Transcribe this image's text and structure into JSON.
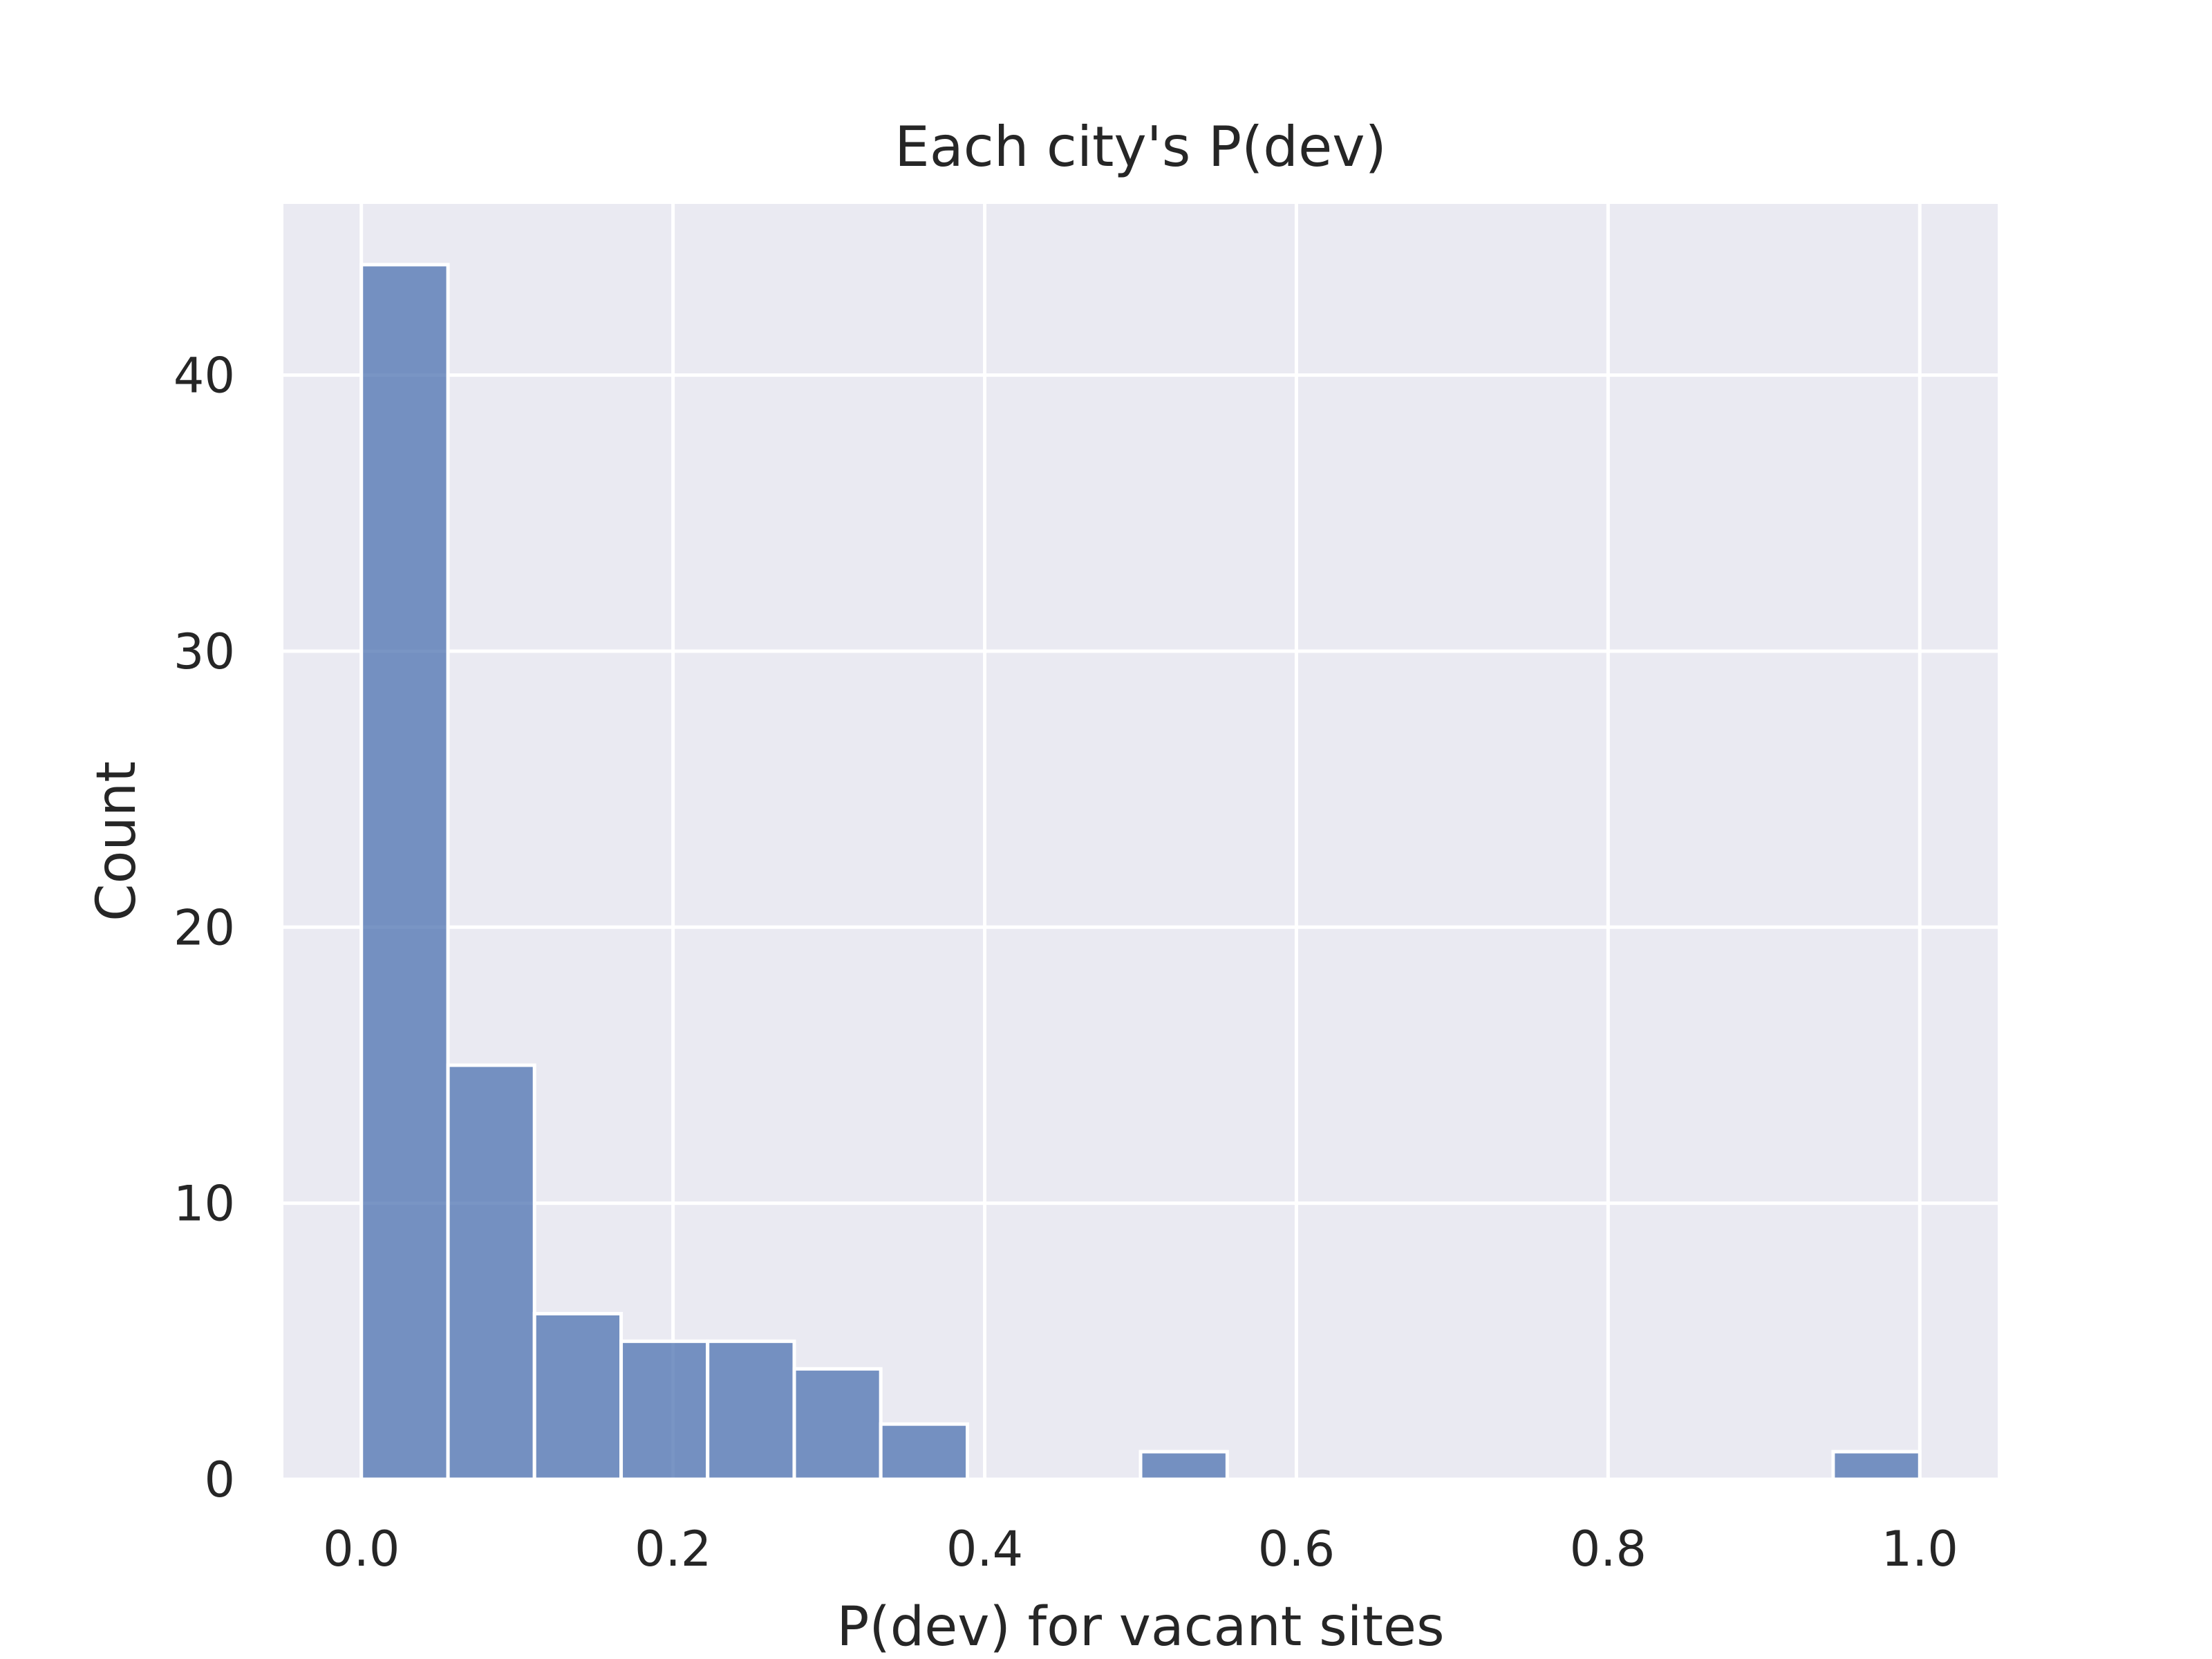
{
  "chart_data": {
    "type": "bar",
    "title": "Each city's P(dev)",
    "xlabel": "P(dev) for vacant sites",
    "ylabel": "Count",
    "bin_edges": [
      0.0,
      0.0556,
      0.1111,
      0.1667,
      0.2222,
      0.2778,
      0.3333,
      0.3889,
      0.4444,
      0.5,
      0.5556,
      0.6111,
      0.6667,
      0.7222,
      0.7778,
      0.8333,
      0.8889,
      0.9444,
      1.0
    ],
    "values": [
      44,
      15,
      6,
      5,
      5,
      4,
      2,
      0,
      0,
      1,
      0,
      0,
      0,
      0,
      0,
      0,
      0,
      1
    ],
    "xlim": [
      -0.05,
      1.05
    ],
    "ylim": [
      0,
      46.2
    ],
    "xticks": [
      0.0,
      0.2,
      0.4,
      0.6,
      0.8,
      1.0
    ],
    "xtick_labels": [
      "0.0",
      "0.2",
      "0.4",
      "0.6",
      "0.8",
      "1.0"
    ],
    "yticks": [
      0,
      10,
      20,
      30,
      40
    ],
    "ytick_labels": [
      "0",
      "10",
      "20",
      "30",
      "40"
    ],
    "grid": true,
    "colors": {
      "bar": "#4c72b0",
      "background": "#eaeaf2",
      "grid": "#ffffff",
      "text": "#262626"
    }
  }
}
